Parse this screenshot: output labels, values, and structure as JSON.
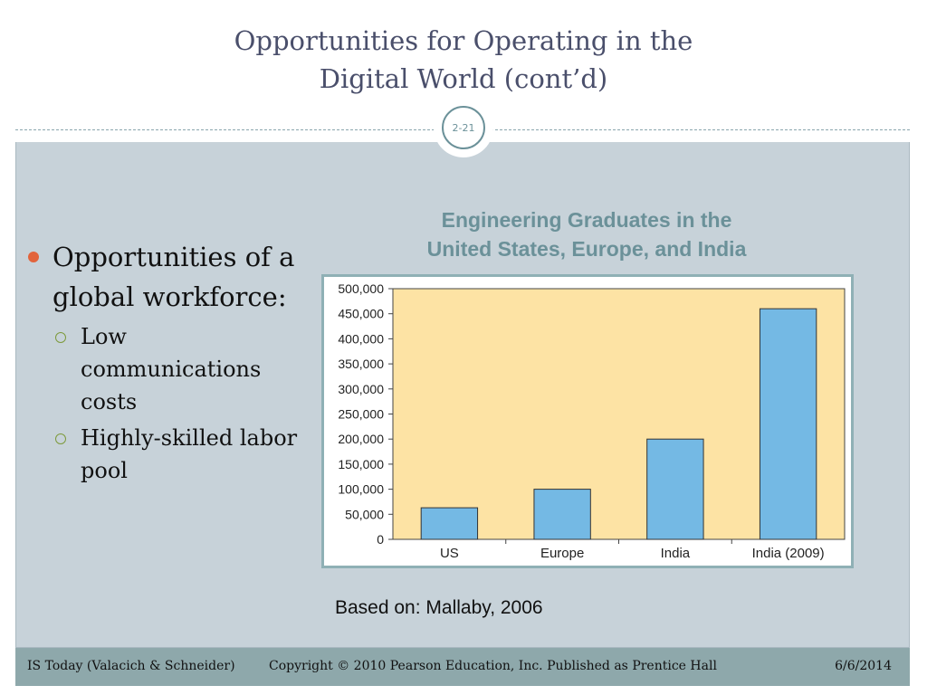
{
  "slide": {
    "title_line1": "Opportunities for Operating in the",
    "title_line2": "Digital World (cont’d)",
    "slide_number": "2-21"
  },
  "bullets": {
    "main": "Opportunities of a global workforce:",
    "subs": [
      "Low communications costs",
      "Highly-skilled labor pool"
    ]
  },
  "chart_data": {
    "type": "bar",
    "title": "Engineering Graduates in the United States, Europe, and India",
    "title_line1": "Engineering Graduates in the",
    "title_line2": "United States, Europe, and India",
    "categories": [
      "US",
      "Europe",
      "India",
      "India (2009)"
    ],
    "values": [
      63000,
      100000,
      200000,
      460000
    ],
    "yticks": [
      "0",
      "50,000",
      "100,000",
      "150,000",
      "200,000",
      "250,000",
      "300,000",
      "350,000",
      "400,000",
      "450,000",
      "500,000"
    ],
    "ylim": [
      0,
      500000
    ],
    "xlabel": "",
    "ylabel": "",
    "grid": false,
    "colors": {
      "bar": "#74b9e4",
      "plot_bg": "#fde3a4",
      "bar_stroke": "#333333"
    }
  },
  "source_note": "Based on: Mallaby, 2006",
  "footer": {
    "left": "IS Today (Valacich & Schneider)",
    "middle": "Copyright © 2010 Pearson Education, Inc. Published as Prentice Hall",
    "right": "6/6/2014"
  }
}
